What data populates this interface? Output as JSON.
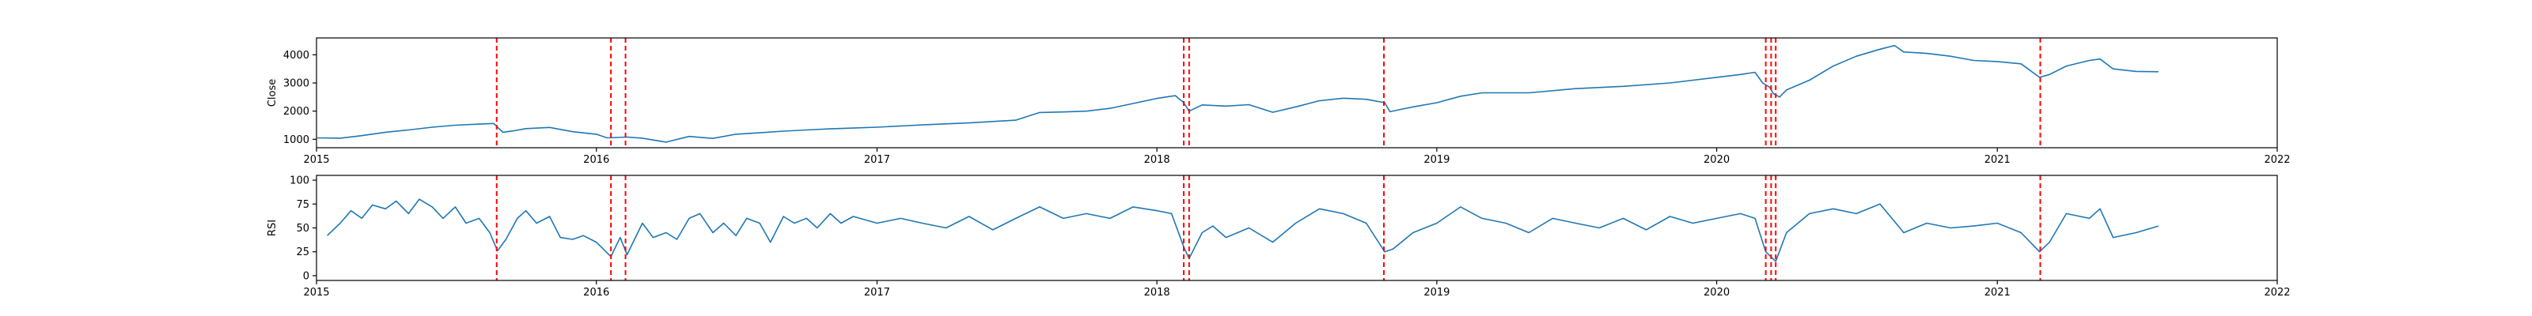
{
  "chart_data": [
    {
      "type": "line",
      "ylabel": "Close",
      "xlim": [
        "2015-01-01",
        "2022-01-01"
      ],
      "ylim": [
        700,
        4600
      ],
      "yticks": [
        1000,
        2000,
        3000,
        4000
      ],
      "xticks": [
        "2015",
        "2016",
        "2017",
        "2018",
        "2019",
        "2020",
        "2021",
        "2022"
      ],
      "series": [
        {
          "color": "#1f77b4",
          "points": [
            [
              "2015-01-02",
              1050
            ],
            [
              "2015-02-01",
              1040
            ],
            [
              "2015-03-01",
              1130
            ],
            [
              "2015-04-01",
              1250
            ],
            [
              "2015-05-01",
              1330
            ],
            [
              "2015-06-01",
              1430
            ],
            [
              "2015-07-01",
              1500
            ],
            [
              "2015-08-01",
              1540
            ],
            [
              "2015-08-20",
              1560
            ],
            [
              "2015-09-01",
              1250
            ],
            [
              "2015-09-15",
              1300
            ],
            [
              "2015-10-01",
              1380
            ],
            [
              "2015-11-01",
              1420
            ],
            [
              "2015-12-01",
              1270
            ],
            [
              "2016-01-01",
              1180
            ],
            [
              "2016-01-15",
              1050
            ],
            [
              "2016-02-10",
              1080
            ],
            [
              "2016-03-01",
              1040
            ],
            [
              "2016-04-01",
              900
            ],
            [
              "2016-05-01",
              1100
            ],
            [
              "2016-06-01",
              1030
            ],
            [
              "2016-07-01",
              1180
            ],
            [
              "2016-08-01",
              1230
            ],
            [
              "2016-09-01",
              1290
            ],
            [
              "2016-10-01",
              1330
            ],
            [
              "2016-11-01",
              1370
            ],
            [
              "2016-12-01",
              1400
            ],
            [
              "2017-01-01",
              1430
            ],
            [
              "2017-03-01",
              1510
            ],
            [
              "2017-05-01",
              1580
            ],
            [
              "2017-07-01",
              1680
            ],
            [
              "2017-08-01",
              1950
            ],
            [
              "2017-09-01",
              1970
            ],
            [
              "2017-10-01",
              2000
            ],
            [
              "2017-11-01",
              2100
            ],
            [
              "2017-12-01",
              2270
            ],
            [
              "2018-01-01",
              2450
            ],
            [
              "2018-01-25",
              2550
            ],
            [
              "2018-02-05",
              2300
            ],
            [
              "2018-02-12",
              2000
            ],
            [
              "2018-03-01",
              2220
            ],
            [
              "2018-04-01",
              2180
            ],
            [
              "2018-05-01",
              2230
            ],
            [
              "2018-06-01",
              1960
            ],
            [
              "2018-07-01",
              2150
            ],
            [
              "2018-08-01",
              2370
            ],
            [
              "2018-09-01",
              2460
            ],
            [
              "2018-10-01",
              2420
            ],
            [
              "2018-10-25",
              2300
            ],
            [
              "2018-11-01",
              1980
            ],
            [
              "2018-12-01",
              2150
            ],
            [
              "2019-01-01",
              2300
            ],
            [
              "2019-02-01",
              2530
            ],
            [
              "2019-03-01",
              2650
            ],
            [
              "2019-05-01",
              2650
            ],
            [
              "2019-07-01",
              2800
            ],
            [
              "2019-09-01",
              2880
            ],
            [
              "2019-11-01",
              3000
            ],
            [
              "2020-01-01",
              3200
            ],
            [
              "2020-02-01",
              3300
            ],
            [
              "2020-02-20",
              3380
            ],
            [
              "2020-03-01",
              3000
            ],
            [
              "2020-03-10",
              2850
            ],
            [
              "2020-03-15",
              2620
            ],
            [
              "2020-03-23",
              2500
            ],
            [
              "2020-04-01",
              2750
            ],
            [
              "2020-05-01",
              3100
            ],
            [
              "2020-06-01",
              3600
            ],
            [
              "2020-07-01",
              3950
            ],
            [
              "2020-08-01",
              4200
            ],
            [
              "2020-08-20",
              4330
            ],
            [
              "2020-09-01",
              4100
            ],
            [
              "2020-10-01",
              4050
            ],
            [
              "2020-11-01",
              3950
            ],
            [
              "2020-12-01",
              3800
            ],
            [
              "2021-01-01",
              3760
            ],
            [
              "2021-02-01",
              3680
            ],
            [
              "2021-02-25",
              3200
            ],
            [
              "2021-03-10",
              3300
            ],
            [
              "2021-04-01",
              3600
            ],
            [
              "2021-05-01",
              3800
            ],
            [
              "2021-05-15",
              3850
            ],
            [
              "2021-06-01",
              3500
            ],
            [
              "2021-07-01",
              3410
            ],
            [
              "2021-07-30",
              3400
            ]
          ]
        }
      ],
      "events": {
        "color": "#ff0000",
        "dates": [
          "2015-08-24",
          "2016-01-20",
          "2016-02-08",
          "2018-02-05",
          "2018-02-12",
          "2018-10-24",
          "2020-03-05",
          "2020-03-12",
          "2020-03-18",
          "2021-02-26"
        ]
      }
    },
    {
      "type": "line",
      "ylabel": "RSI",
      "xlim": [
        "2015-01-01",
        "2022-01-01"
      ],
      "ylim": [
        -5,
        105
      ],
      "yticks": [
        0,
        25,
        50,
        75,
        100
      ],
      "xticks": [
        "2015",
        "2016",
        "2017",
        "2018",
        "2019",
        "2020",
        "2021",
        "2022"
      ],
      "series": [
        {
          "color": "#1f77b4",
          "points": [
            [
              "2015-01-15",
              42
            ],
            [
              "2015-02-01",
              55
            ],
            [
              "2015-02-15",
              68
            ],
            [
              "2015-03-01",
              60
            ],
            [
              "2015-03-15",
              74
            ],
            [
              "2015-04-01",
              70
            ],
            [
              "2015-04-15",
              78
            ],
            [
              "2015-05-01",
              65
            ],
            [
              "2015-05-15",
              80
            ],
            [
              "2015-06-01",
              72
            ],
            [
              "2015-06-15",
              60
            ],
            [
              "2015-07-01",
              72
            ],
            [
              "2015-07-15",
              55
            ],
            [
              "2015-08-01",
              60
            ],
            [
              "2015-08-15",
              45
            ],
            [
              "2015-08-25",
              26
            ],
            [
              "2015-09-05",
              38
            ],
            [
              "2015-09-20",
              60
            ],
            [
              "2015-10-01",
              68
            ],
            [
              "2015-10-15",
              55
            ],
            [
              "2015-11-01",
              62
            ],
            [
              "2015-11-15",
              40
            ],
            [
              "2015-12-01",
              38
            ],
            [
              "2015-12-15",
              42
            ],
            [
              "2016-01-01",
              35
            ],
            [
              "2016-01-20",
              20
            ],
            [
              "2016-02-01",
              40
            ],
            [
              "2016-02-10",
              22
            ],
            [
              "2016-03-01",
              55
            ],
            [
              "2016-03-15",
              40
            ],
            [
              "2016-04-01",
              45
            ],
            [
              "2016-04-15",
              38
            ],
            [
              "2016-05-01",
              60
            ],
            [
              "2016-05-15",
              65
            ],
            [
              "2016-06-01",
              45
            ],
            [
              "2016-06-15",
              55
            ],
            [
              "2016-07-01",
              42
            ],
            [
              "2016-07-15",
              60
            ],
            [
              "2016-08-01",
              55
            ],
            [
              "2016-08-15",
              35
            ],
            [
              "2016-09-01",
              62
            ],
            [
              "2016-09-15",
              55
            ],
            [
              "2016-10-01",
              60
            ],
            [
              "2016-10-15",
              50
            ],
            [
              "2016-11-01",
              65
            ],
            [
              "2016-11-15",
              55
            ],
            [
              "2016-12-01",
              62
            ],
            [
              "2017-01-01",
              55
            ],
            [
              "2017-02-01",
              60
            ],
            [
              "2017-03-01",
              55
            ],
            [
              "2017-04-01",
              50
            ],
            [
              "2017-05-01",
              62
            ],
            [
              "2017-06-01",
              48
            ],
            [
              "2017-07-01",
              60
            ],
            [
              "2017-08-01",
              72
            ],
            [
              "2017-09-01",
              60
            ],
            [
              "2017-10-01",
              65
            ],
            [
              "2017-11-01",
              60
            ],
            [
              "2017-12-01",
              72
            ],
            [
              "2018-01-01",
              68
            ],
            [
              "2018-01-20",
              65
            ],
            [
              "2018-02-05",
              30
            ],
            [
              "2018-02-12",
              18
            ],
            [
              "2018-03-01",
              45
            ],
            [
              "2018-03-15",
              52
            ],
            [
              "2018-04-01",
              40
            ],
            [
              "2018-05-01",
              50
            ],
            [
              "2018-06-01",
              35
            ],
            [
              "2018-07-01",
              55
            ],
            [
              "2018-08-01",
              70
            ],
            [
              "2018-09-01",
              65
            ],
            [
              "2018-10-01",
              55
            ],
            [
              "2018-10-25",
              25
            ],
            [
              "2018-11-05",
              28
            ],
            [
              "2018-12-01",
              45
            ],
            [
              "2019-01-01",
              55
            ],
            [
              "2019-02-01",
              72
            ],
            [
              "2019-03-01",
              60
            ],
            [
              "2019-04-01",
              55
            ],
            [
              "2019-05-01",
              45
            ],
            [
              "2019-06-01",
              60
            ],
            [
              "2019-07-01",
              55
            ],
            [
              "2019-08-01",
              50
            ],
            [
              "2019-09-01",
              60
            ],
            [
              "2019-10-01",
              48
            ],
            [
              "2019-11-01",
              62
            ],
            [
              "2019-12-01",
              55
            ],
            [
              "2020-01-01",
              60
            ],
            [
              "2020-02-01",
              65
            ],
            [
              "2020-02-20",
              60
            ],
            [
              "2020-03-05",
              25
            ],
            [
              "2020-03-18",
              15
            ],
            [
              "2020-04-01",
              45
            ],
            [
              "2020-05-01",
              65
            ],
            [
              "2020-06-01",
              70
            ],
            [
              "2020-07-01",
              65
            ],
            [
              "2020-08-01",
              75
            ],
            [
              "2020-09-01",
              45
            ],
            [
              "2020-10-01",
              55
            ],
            [
              "2020-11-01",
              50
            ],
            [
              "2020-12-01",
              52
            ],
            [
              "2021-01-01",
              55
            ],
            [
              "2021-02-01",
              45
            ],
            [
              "2021-02-25",
              25
            ],
            [
              "2021-03-10",
              35
            ],
            [
              "2021-04-01",
              65
            ],
            [
              "2021-05-01",
              60
            ],
            [
              "2021-05-15",
              70
            ],
            [
              "2021-06-01",
              40
            ],
            [
              "2021-07-01",
              45
            ],
            [
              "2021-07-30",
              52
            ]
          ]
        }
      ],
      "events": {
        "color": "#ff0000",
        "dates": [
          "2015-08-24",
          "2016-01-20",
          "2016-02-08",
          "2018-02-05",
          "2018-02-12",
          "2018-10-24",
          "2020-03-05",
          "2020-03-12",
          "2020-03-18",
          "2021-02-26"
        ]
      }
    }
  ]
}
